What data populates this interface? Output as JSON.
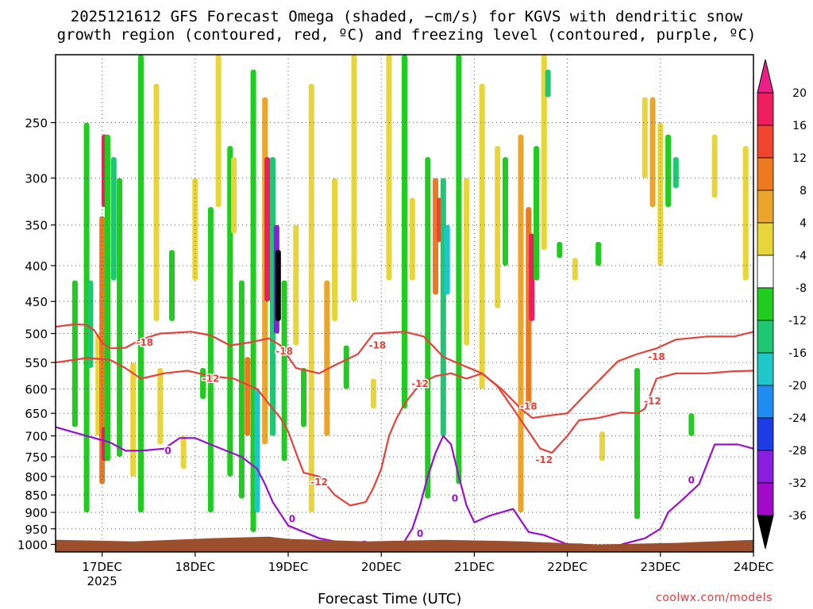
{
  "chart_data": {
    "type": "heatmap",
    "title_line1": "2025121612 GFS Forecast Omega (shaded, −cm/s) for KGVS with dendritic snow",
    "title_line2": "growth region (contoured, red, ºC) and freezing level (contoured, purple, ºC)",
    "xlabel": "Forecast Time (UTC)",
    "ylabel": "",
    "x_ticks": [
      "17DEC",
      "18DEC",
      "19DEC",
      "20DEC",
      "21DEC",
      "22DEC",
      "23DEC",
      "24DEC"
    ],
    "x_year_label": "2025",
    "y_ticks": [
      250,
      300,
      350,
      400,
      450,
      500,
      550,
      600,
      650,
      700,
      750,
      800,
      850,
      900,
      950,
      1000
    ],
    "y_scale": "log-pressure (reversed)",
    "xlim_hours": [
      0,
      180
    ],
    "ylim_hpa": [
      200,
      1025
    ],
    "grid": "dotted",
    "colorbar": {
      "levels": [
        20,
        16,
        12,
        8,
        4,
        -4,
        -8,
        -12,
        -16,
        -20,
        -24,
        -28,
        -32,
        -36
      ],
      "colors": [
        "#ee1e5e",
        "#f0442e",
        "#ee7a20",
        "#eaa52a",
        "#e8d53a",
        "#ffffff",
        "#20cc20",
        "#1ec872",
        "#1ec8c8",
        "#1e8cf0",
        "#1e3ce6",
        "#8a1ee0",
        "#a00ac8",
        "#aaaaaa",
        "#000000"
      ],
      "top_arrow_color": "#ee1e88",
      "bottom_arrow_color": "#000000"
    },
    "omega_cells": [
      {
        "t": 5,
        "p0": 420,
        "p1": 680,
        "v": -8
      },
      {
        "t": 8,
        "p0": 250,
        "p1": 900,
        "v": -8
      },
      {
        "t": 9,
        "p0": 420,
        "p1": 560,
        "v": -12
      },
      {
        "t": 11,
        "p0": 500,
        "p1": 700,
        "v": 4
      },
      {
        "t": 12,
        "p0": 340,
        "p1": 820,
        "v": 12
      },
      {
        "t": 12.6,
        "p0": 260,
        "p1": 330,
        "v": 20
      },
      {
        "t": 12.6,
        "p0": 680,
        "p1": 760,
        "v": 20
      },
      {
        "t": 13.4,
        "p0": 260,
        "p1": 760,
        "v": -8
      },
      {
        "t": 15,
        "p0": 280,
        "p1": 420,
        "v": -12
      },
      {
        "t": 16.5,
        "p0": 300,
        "p1": 750,
        "v": -8
      },
      {
        "t": 20,
        "p0": 550,
        "p1": 800,
        "v": 4
      },
      {
        "t": 22,
        "p0": 200,
        "p1": 900,
        "v": -8
      },
      {
        "t": 26,
        "p0": 220,
        "p1": 480,
        "v": 4
      },
      {
        "t": 27,
        "p0": 560,
        "p1": 720,
        "v": 4
      },
      {
        "t": 30,
        "p0": 380,
        "p1": 480,
        "v": -8
      },
      {
        "t": 33,
        "p0": 700,
        "p1": 780,
        "v": 4
      },
      {
        "t": 36,
        "p0": 300,
        "p1": 420,
        "v": 4
      },
      {
        "t": 38,
        "p0": 560,
        "p1": 620,
        "v": -8
      },
      {
        "t": 40,
        "p0": 330,
        "p1": 900,
        "v": -8
      },
      {
        "t": 42,
        "p0": 200,
        "p1": 330,
        "v": 4
      },
      {
        "t": 45,
        "p0": 270,
        "p1": 800,
        "v": -8
      },
      {
        "t": 46,
        "p0": 280,
        "p1": 360,
        "v": 4
      },
      {
        "t": 48,
        "p0": 420,
        "p1": 860,
        "v": -8
      },
      {
        "t": 49.5,
        "p0": 540,
        "p1": 700,
        "v": 12
      },
      {
        "t": 51,
        "p0": 210,
        "p1": 960,
        "v": -8
      },
      {
        "t": 52,
        "p0": 600,
        "p1": 900,
        "v": -16
      },
      {
        "t": 54,
        "p0": 230,
        "p1": 720,
        "v": 8
      },
      {
        "t": 54.6,
        "p0": 280,
        "p1": 450,
        "v": 20
      },
      {
        "t": 56,
        "p0": 280,
        "p1": 700,
        "v": -12
      },
      {
        "t": 57,
        "p0": 350,
        "p1": 500,
        "v": -28
      },
      {
        "t": 57.4,
        "p0": 380,
        "p1": 480,
        "v": -36
      },
      {
        "t": 59,
        "p0": 420,
        "p1": 760,
        "v": -8
      },
      {
        "t": 62,
        "p0": 350,
        "p1": 520,
        "v": 4
      },
      {
        "t": 64,
        "p0": 560,
        "p1": 680,
        "v": -8
      },
      {
        "t": 66,
        "p0": 220,
        "p1": 900,
        "v": 4
      },
      {
        "t": 70,
        "p0": 420,
        "p1": 700,
        "v": 8
      },
      {
        "t": 72,
        "p0": 300,
        "p1": 480,
        "v": 4
      },
      {
        "t": 75,
        "p0": 520,
        "p1": 600,
        "v": -8
      },
      {
        "t": 77,
        "p0": 200,
        "p1": 450,
        "v": 4
      },
      {
        "t": 82,
        "p0": 580,
        "p1": 640,
        "v": 4
      },
      {
        "t": 86,
        "p0": 200,
        "p1": 420,
        "v": 4
      },
      {
        "t": 90,
        "p0": 200,
        "p1": 640,
        "v": -8
      },
      {
        "t": 92,
        "p0": 320,
        "p1": 420,
        "v": 4
      },
      {
        "t": 96,
        "p0": 280,
        "p1": 860,
        "v": -8
      },
      {
        "t": 98,
        "p0": 300,
        "p1": 440,
        "v": 12
      },
      {
        "t": 99,
        "p0": 320,
        "p1": 370,
        "v": 16
      },
      {
        "t": 100,
        "p0": 300,
        "p1": 700,
        "v": -12
      },
      {
        "t": 101,
        "p0": 350,
        "p1": 440,
        "v": -16
      },
      {
        "t": 104,
        "p0": 200,
        "p1": 820,
        "v": -8
      },
      {
        "t": 106,
        "p0": 300,
        "p1": 520,
        "v": 4
      },
      {
        "t": 110,
        "p0": 220,
        "p1": 600,
        "v": 4
      },
      {
        "t": 114,
        "p0": 270,
        "p1": 460,
        "v": 4
      },
      {
        "t": 116,
        "p0": 280,
        "p1": 400,
        "v": -8
      },
      {
        "t": 120,
        "p0": 260,
        "p1": 900,
        "v": 8
      },
      {
        "t": 122,
        "p0": 330,
        "p1": 640,
        "v": 12
      },
      {
        "t": 122.8,
        "p0": 360,
        "p1": 480,
        "v": 20
      },
      {
        "t": 124,
        "p0": 270,
        "p1": 420,
        "v": -8
      },
      {
        "t": 126,
        "p0": 200,
        "p1": 380,
        "v": 4
      },
      {
        "t": 127,
        "p0": 210,
        "p1": 230,
        "v": -12
      },
      {
        "t": 130,
        "p0": 370,
        "p1": 390,
        "v": -8
      },
      {
        "t": 134,
        "p0": 390,
        "p1": 420,
        "v": 4
      },
      {
        "t": 140,
        "p0": 370,
        "p1": 400,
        "v": -8
      },
      {
        "t": 141,
        "p0": 690,
        "p1": 760,
        "v": 4
      },
      {
        "t": 150,
        "p0": 560,
        "p1": 920,
        "v": -8
      },
      {
        "t": 152,
        "p0": 230,
        "p1": 300,
        "v": 4
      },
      {
        "t": 154,
        "p0": 230,
        "p1": 330,
        "v": 8
      },
      {
        "t": 156,
        "p0": 250,
        "p1": 400,
        "v": 4
      },
      {
        "t": 158,
        "p0": 260,
        "p1": 330,
        "v": -8
      },
      {
        "t": 160,
        "p0": 280,
        "p1": 310,
        "v": -12
      },
      {
        "t": 164,
        "p0": 650,
        "p1": 700,
        "v": -8
      },
      {
        "t": 170,
        "p0": 260,
        "p1": 320,
        "v": 4
      },
      {
        "t": 178,
        "p0": 270,
        "p1": 420,
        "v": 4
      }
    ],
    "contours": [
      {
        "name": "-18",
        "color": "#e8403a",
        "points": [
          [
            0,
            489
          ],
          [
            5,
            485
          ],
          [
            8,
            486
          ],
          [
            10,
            495
          ],
          [
            12,
            515
          ],
          [
            14,
            525
          ],
          [
            18,
            524
          ],
          [
            22,
            510
          ],
          [
            27,
            500
          ],
          [
            35,
            497
          ],
          [
            40,
            503
          ],
          [
            45,
            520
          ],
          [
            50,
            515
          ],
          [
            55,
            508
          ],
          [
            58,
            520
          ],
          [
            62,
            560
          ],
          [
            68,
            570
          ],
          [
            72,
            555
          ],
          [
            78,
            535
          ],
          [
            82,
            500
          ],
          [
            90,
            497
          ],
          [
            95,
            505
          ],
          [
            100,
            540
          ],
          [
            105,
            555
          ],
          [
            110,
            570
          ],
          [
            115,
            600
          ],
          [
            120,
            640
          ],
          [
            123,
            660
          ],
          [
            127,
            655
          ],
          [
            132,
            650
          ],
          [
            138,
            600
          ],
          [
            145,
            548
          ],
          [
            150,
            535
          ],
          [
            155,
            525
          ],
          [
            160,
            510
          ],
          [
            168,
            505
          ],
          [
            175,
            505
          ],
          [
            180,
            497
          ]
        ]
      },
      {
        "name": "-12",
        "color": "#e8403a",
        "points": [
          [
            0,
            550
          ],
          [
            8,
            542
          ],
          [
            14,
            545
          ],
          [
            18,
            560
          ],
          [
            22,
            580
          ],
          [
            28,
            570
          ],
          [
            34,
            565
          ],
          [
            40,
            575
          ],
          [
            46,
            580
          ],
          [
            52,
            600
          ],
          [
            55,
            630
          ],
          [
            58,
            660
          ],
          [
            60,
            690
          ],
          [
            62,
            740
          ],
          [
            64,
            790
          ],
          [
            68,
            800
          ],
          [
            72,
            850
          ],
          [
            76,
            880
          ],
          [
            80,
            870
          ],
          [
            82,
            830
          ],
          [
            84,
            780
          ],
          [
            86,
            700
          ],
          [
            88,
            660
          ],
          [
            90,
            630
          ],
          [
            94,
            590
          ],
          [
            98,
            575
          ],
          [
            102,
            570
          ],
          [
            106,
            580
          ],
          [
            110,
            570
          ],
          [
            114,
            595
          ],
          [
            118,
            640
          ],
          [
            122,
            690
          ],
          [
            125,
            730
          ],
          [
            128,
            740
          ],
          [
            132,
            700
          ],
          [
            135,
            665
          ],
          [
            140,
            660
          ],
          [
            146,
            648
          ],
          [
            150,
            650
          ],
          [
            152,
            640
          ],
          [
            155,
            580
          ],
          [
            160,
            570
          ],
          [
            168,
            570
          ],
          [
            175,
            566
          ],
          [
            180,
            565
          ]
        ]
      },
      {
        "name": "0",
        "color": "#9a0fd0",
        "points": [
          [
            0,
            680
          ],
          [
            4,
            690
          ],
          [
            8,
            700
          ],
          [
            14,
            715
          ],
          [
            18,
            735
          ],
          [
            22,
            735
          ],
          [
            28,
            730
          ],
          [
            32,
            705
          ],
          [
            36,
            705
          ],
          [
            40,
            720
          ],
          [
            44,
            735
          ],
          [
            48,
            750
          ],
          [
            52,
            780
          ],
          [
            54,
            820
          ],
          [
            56,
            870
          ],
          [
            60,
            940
          ],
          [
            64,
            960
          ],
          [
            68,
            980
          ],
          [
            76,
            1000
          ],
          [
            80,
            990
          ]
        ]
      },
      {
        "name": "0",
        "color": "#9a0fd0",
        "points": [
          [
            90,
            990
          ],
          [
            92,
            950
          ],
          [
            94,
            880
          ],
          [
            96,
            800
          ],
          [
            98,
            740
          ],
          [
            100,
            700
          ],
          [
            102,
            720
          ],
          [
            104,
            800
          ],
          [
            106,
            880
          ],
          [
            108,
            930
          ],
          [
            112,
            910
          ],
          [
            118,
            890
          ],
          [
            122,
            960
          ],
          [
            126,
            970
          ],
          [
            132,
            1000
          ],
          [
            136,
            1000
          ]
        ]
      },
      {
        "name": "0",
        "color": "#9a0fd0",
        "points": [
          [
            146,
            1000
          ],
          [
            152,
            980
          ],
          [
            156,
            950
          ],
          [
            158,
            900
          ],
          [
            162,
            860
          ],
          [
            166,
            820
          ],
          [
            170,
            720
          ],
          [
            176,
            720
          ],
          [
            180,
            730
          ]
        ]
      }
    ],
    "contour_labels": [
      {
        "text": "-18",
        "t": 23,
        "p": 515,
        "color": "#e8403a"
      },
      {
        "text": "-18",
        "t": 59,
        "p": 530,
        "color": "#e8403a"
      },
      {
        "text": "-18",
        "t": 83,
        "p": 520,
        "color": "#e8403a"
      },
      {
        "text": "-18",
        "t": 122,
        "p": 635,
        "color": "#e8403a"
      },
      {
        "text": "-18",
        "t": 155,
        "p": 540,
        "color": "#e8403a"
      },
      {
        "text": "-12",
        "t": 40,
        "p": 580,
        "color": "#e8403a"
      },
      {
        "text": "-12",
        "t": 94,
        "p": 590,
        "color": "#e8403a"
      },
      {
        "text": "-12",
        "t": 68,
        "p": 815,
        "color": "#e8403a"
      },
      {
        "text": "-12",
        "t": 126,
        "p": 758,
        "color": "#e8403a"
      },
      {
        "text": "-12",
        "t": 154,
        "p": 625,
        "color": "#e8403a"
      },
      {
        "text": "0",
        "t": 29,
        "p": 735,
        "color": "#9a0fd0"
      },
      {
        "text": "0",
        "t": 61,
        "p": 920,
        "color": "#9a0fd0"
      },
      {
        "text": "0",
        "t": 94,
        "p": 965,
        "color": "#9a0fd0"
      },
      {
        "text": "0",
        "t": 103,
        "p": 860,
        "color": "#9a0fd0"
      },
      {
        "text": "0",
        "t": 164,
        "p": 810,
        "color": "#9a0fd0"
      }
    ],
    "terrain": {
      "color": "#9b4f2c",
      "points": [
        [
          0,
          985
        ],
        [
          20,
          990
        ],
        [
          40,
          980
        ],
        [
          55,
          975
        ],
        [
          60,
          982
        ],
        [
          80,
          990
        ],
        [
          100,
          985
        ],
        [
          120,
          990
        ],
        [
          140,
          1000
        ],
        [
          160,
          995
        ],
        [
          180,
          985
        ]
      ]
    }
  },
  "credit": "coolwx.com/models"
}
